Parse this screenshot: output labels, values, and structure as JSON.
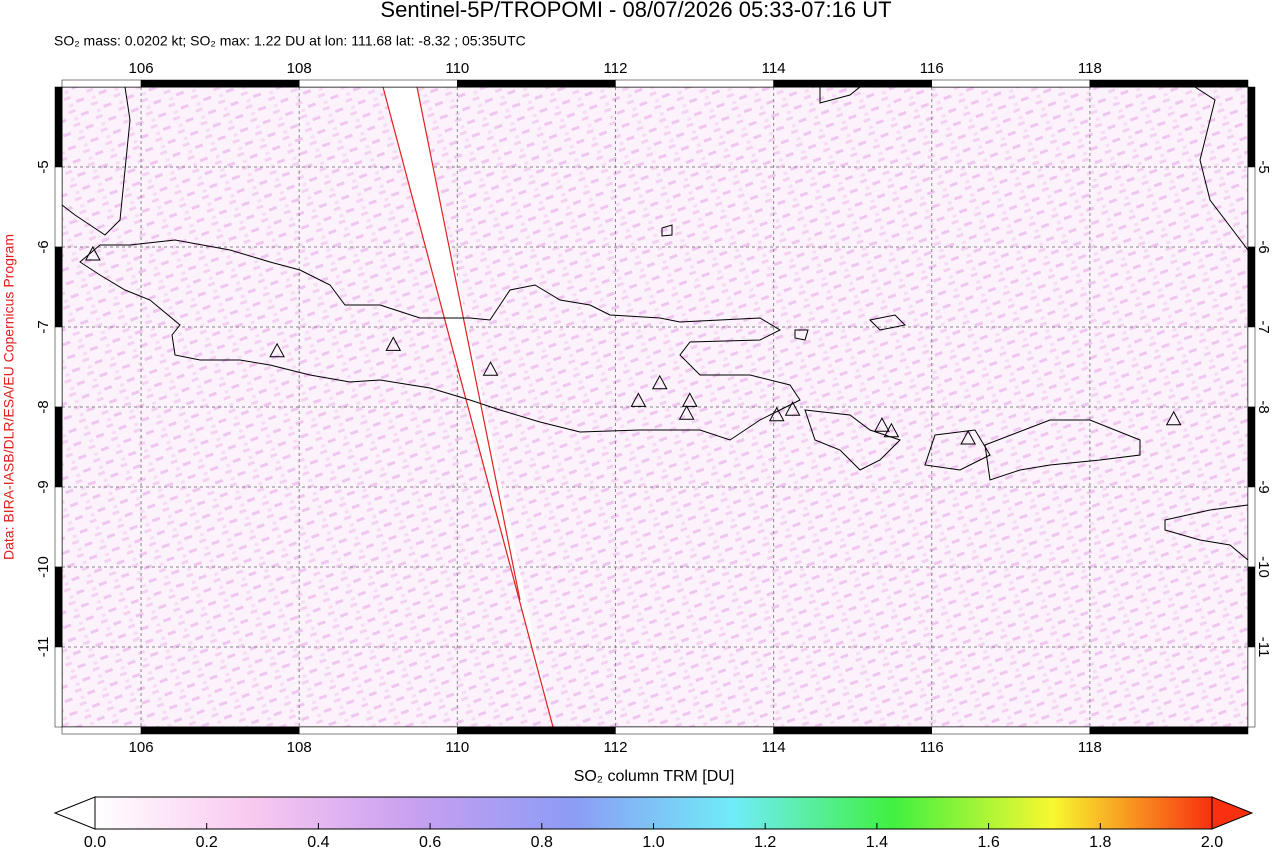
{
  "map": {
    "title": "Sentinel-5P/TROPOMI - 08/07/2026 05:33-07:16 UT",
    "subtitle": "SO₂ mass: 0.0202 kt; SO₂ max: 1.22 DU at lon: 111.68 lat: -8.32 ; 05:35UTC",
    "credit": "Data: BIRA-IASB/DLR/ESA/EU Copernicus Program",
    "lonlim": [
      105,
      120
    ],
    "latlim": [
      -12,
      -4
    ],
    "lon_ticks": [
      106,
      108,
      110,
      112,
      114,
      116,
      118
    ],
    "lat_ticks": [
      -5,
      -6,
      -7,
      -8,
      -9,
      -10,
      -11
    ],
    "grid": true,
    "volcanoes": [
      [
        105.39,
        -6.1
      ],
      [
        107.72,
        -7.31
      ],
      [
        109.19,
        -7.23
      ],
      [
        110.42,
        -7.54
      ],
      [
        112.29,
        -7.93
      ],
      [
        112.56,
        -7.71
      ],
      [
        112.94,
        -7.93
      ],
      [
        112.9,
        -8.09
      ],
      [
        114.04,
        -8.11
      ],
      [
        114.24,
        -8.04
      ],
      [
        115.37,
        -8.24
      ],
      [
        115.49,
        -8.31
      ],
      [
        116.46,
        -8.4
      ],
      [
        119.06,
        -8.16
      ]
    ],
    "colorbar": {
      "label": "SO₂ column TRM [DU]",
      "lim": [
        0,
        2
      ],
      "colors": [
        "#ffffff",
        "#f8c8f0",
        "#c8a0f0",
        "#8c9cf4",
        "#70ecf8",
        "#40f040",
        "#f8f830",
        "#f83010"
      ],
      "ticks": [
        {
          "value": 0,
          "label": "0.0"
        },
        {
          "value": 0.2,
          "label": "0.2"
        },
        {
          "value": 0.4,
          "label": "0.4"
        },
        {
          "value": 0.6,
          "label": "0.6"
        },
        {
          "value": 0.8,
          "label": "0.8"
        },
        {
          "value": 1,
          "label": "1.0"
        },
        {
          "value": 1.2,
          "label": "1.2"
        },
        {
          "value": 1.4,
          "label": "1.4"
        },
        {
          "value": 1.6,
          "label": "1.6"
        },
        {
          "value": 1.8,
          "label": "1.8"
        },
        {
          "value": 2,
          "label": "2.0"
        }
      ]
    }
  }
}
